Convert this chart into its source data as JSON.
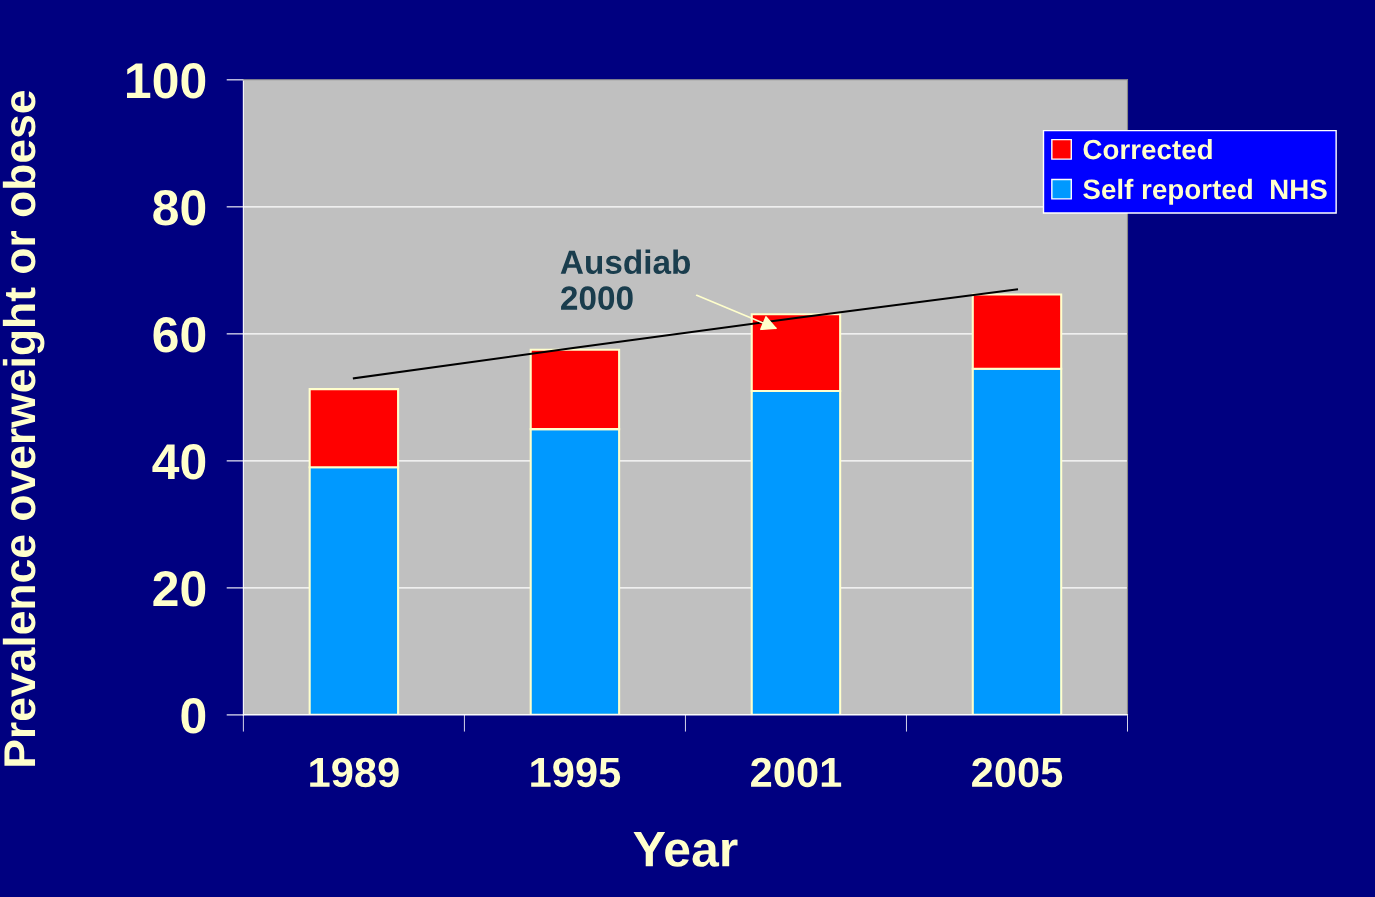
{
  "chart_data": {
    "type": "bar",
    "stacked": true,
    "xlabel": "Year",
    "ylabel": "Prevalence overweight or obese",
    "categories": [
      "1989",
      "1995",
      "2001",
      "2005"
    ],
    "series": [
      {
        "name": "Self reported  NHS",
        "color": "#0099ff",
        "values": [
          39,
          45,
          51,
          54.5
        ]
      },
      {
        "name": "Corrected",
        "color": "#ff0000",
        "values": [
          12.3,
          12.5,
          12.1,
          11.7
        ]
      },
      {
        "type": "line",
        "color": "#000000",
        "values": [
          53,
          57.8,
          62.5,
          67
        ]
      }
    ],
    "ylim": [
      0,
      100
    ],
    "yticks": [
      0,
      20,
      40,
      60,
      80,
      100
    ],
    "grid": "y",
    "legend": "top right",
    "annotations": [
      "Ausdiab\n2000"
    ]
  }
}
